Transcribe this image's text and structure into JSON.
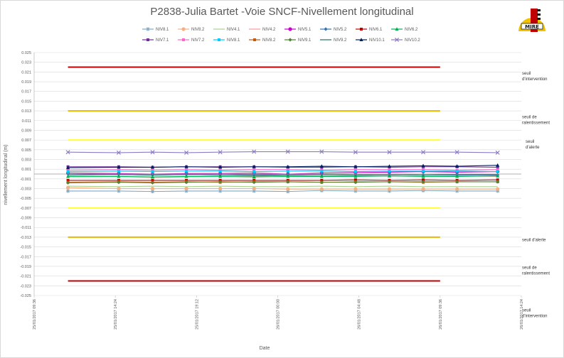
{
  "chart_data": {
    "type": "line",
    "title": "P2838-Julia Bartet -Voie SNCF-Nivellement longitudinal",
    "xlabel": "Date",
    "ylabel": "nivellement longitudinal (m)",
    "ylim": [
      -0.025,
      0.025
    ],
    "y_tick_step": 0.002,
    "x_ticks": [
      "25/01/2017 09:36",
      "25/01/2017 14:24",
      "25/01/2017 19:12",
      "26/01/2017 00:00",
      "26/01/2017 04:48",
      "26/01/2017 09:36",
      "26/01/2017 14:24"
    ],
    "x_range_hours": [
      0,
      28.8
    ],
    "x_point_hours": [
      2,
      5,
      7,
      9,
      11,
      13,
      15,
      17,
      19,
      21,
      23,
      25,
      27.4
    ],
    "grid": "horizontal",
    "legend_position": "top",
    "thresholds": [
      {
        "label": "seuil d'intervention",
        "value": 0.022,
        "color": "#c00000"
      },
      {
        "label": "seuil de ralentissement",
        "value": 0.013,
        "color": "#e6b800"
      },
      {
        "label": "seuil d'alerte",
        "value": 0.007,
        "color": "#ffff33"
      },
      {
        "label": "seuil d'alerte",
        "value": -0.007,
        "color": "#ffff33"
      },
      {
        "label": "seuil de ralentissement",
        "value": -0.013,
        "color": "#e6b800"
      },
      {
        "label": "seuil d'intervention",
        "value": -0.022,
        "color": "#c00000"
      }
    ],
    "threshold_x_hours": [
      0,
      24
    ],
    "series": [
      {
        "name": "NIV8.1",
        "color": "#7fa9c6",
        "marker": "star",
        "values": [
          -0.0035,
          -0.0035,
          -0.0036,
          -0.0035,
          -0.0035,
          -0.0035,
          -0.0036,
          -0.0034,
          -0.0035,
          -0.0035,
          -0.0034,
          -0.0035,
          -0.0035
        ]
      },
      {
        "name": "NIV8.2",
        "color": "#f4b183",
        "marker": "circle",
        "values": [
          -0.0028,
          -0.003,
          -0.003,
          -0.003,
          -0.003,
          -0.003,
          -0.0031,
          -0.0031,
          -0.0031,
          -0.0031,
          -0.0031,
          -0.0031,
          -0.0031
        ]
      },
      {
        "name": "NIV4.1",
        "color": "#a9d18e",
        "marker": "none",
        "values": [
          -0.0025,
          -0.0026,
          -0.0025,
          -0.0026,
          -0.0025,
          -0.0026,
          -0.0026,
          -0.0025,
          -0.0026,
          -0.0025,
          -0.0026,
          -0.0026,
          -0.0026
        ]
      },
      {
        "name": "NIV4.2",
        "color": "#ff9999",
        "marker": "none",
        "values": [
          -0.0006,
          -0.0005,
          -0.0007,
          -0.0006,
          -0.0005,
          -0.0005,
          -0.0003,
          -0.0004,
          -0.0003,
          -0.0004,
          -0.0005,
          -0.0004,
          -0.0005
        ]
      },
      {
        "name": "NIV5.1",
        "color": "#cc00cc",
        "marker": "circle",
        "values": [
          0.0002,
          0.0001,
          0.0,
          0.0001,
          0.0001,
          0.0002,
          0.0,
          0.0002,
          0.0003,
          0.0004,
          0.0005,
          0.0004,
          0.0005
        ]
      },
      {
        "name": "NIV5.2",
        "color": "#2e75b6",
        "marker": "diamond",
        "values": [
          0.0,
          -0.0001,
          -0.0002,
          -0.0001,
          -0.0002,
          -0.0001,
          -0.0002,
          -0.0001,
          -0.0002,
          -0.0001,
          -0.0002,
          -0.0002,
          -0.0002
        ]
      },
      {
        "name": "NIV6.1",
        "color": "#c00000",
        "marker": "square",
        "values": [
          -0.0013,
          -0.0013,
          -0.0013,
          -0.0013,
          -0.0013,
          -0.0013,
          -0.0013,
          -0.0013,
          -0.0012,
          -0.0013,
          -0.0012,
          -0.0013,
          -0.0012
        ]
      },
      {
        "name": "NIV6.2",
        "color": "#00b050",
        "marker": "triangle",
        "values": [
          -0.0005,
          -0.0005,
          -0.0006,
          -0.0005,
          -0.0005,
          -0.0006,
          -0.0005,
          -0.0005,
          -0.0005,
          -0.0004,
          -0.0005,
          -0.0005,
          -0.0004
        ]
      },
      {
        "name": "NIV7.1",
        "color": "#7030a0",
        "marker": "square",
        "values": [
          0.0015,
          0.0015,
          0.0014,
          0.0015,
          0.0015,
          0.0015,
          0.0014,
          0.0014,
          0.0015,
          0.0014,
          0.0015,
          0.0015,
          0.0014
        ]
      },
      {
        "name": "NIV7.2",
        "color": "#ff66cc",
        "marker": "square",
        "values": [
          0.0008,
          0.0009,
          0.0008,
          0.0009,
          0.0008,
          0.0009,
          0.0009,
          0.0008,
          0.0009,
          0.0009,
          0.0009,
          0.0008,
          0.0009
        ]
      },
      {
        "name": "NIV8.1",
        "color": "#00ccff",
        "marker": "square",
        "values": [
          0.0005,
          0.0006,
          0.0005,
          0.0006,
          0.0006,
          0.0005,
          0.0006,
          0.0006,
          0.0005,
          0.0006,
          0.0006,
          0.0006,
          0.0005
        ]
      },
      {
        "name": "NIV8.2",
        "color": "#c55a11",
        "marker": "square",
        "values": [
          -0.0017,
          -0.0016,
          -0.0017,
          -0.0016,
          -0.0017,
          -0.0016,
          -0.0016,
          -0.0017,
          -0.0016,
          -0.0016,
          -0.0017,
          -0.0016,
          -0.0016
        ]
      },
      {
        "name": "NIV9.1",
        "color": "#548235",
        "marker": "diamond",
        "values": [
          -0.0018,
          -0.0017,
          -0.0018,
          -0.0017,
          -0.0016,
          -0.0017,
          -0.0016,
          -0.0017,
          -0.0017,
          -0.0016,
          -0.0016,
          -0.0016,
          -0.0016
        ]
      },
      {
        "name": "NIV9.2",
        "color": "#1f6f5f",
        "marker": "none",
        "values": [
          -0.0002,
          -0.0001,
          -0.0002,
          -0.0001,
          -0.0002,
          -0.0003,
          -0.0002,
          -0.0001,
          -0.0002,
          -0.0001,
          -0.0002,
          -0.0001,
          -0.0001
        ]
      },
      {
        "name": "NIV10.1",
        "color": "#002060",
        "marker": "triangle",
        "values": [
          0.0013,
          0.0014,
          0.0014,
          0.0015,
          0.0014,
          0.0015,
          0.0015,
          0.0016,
          0.0015,
          0.0016,
          0.0017,
          0.0016,
          0.0018
        ]
      },
      {
        "name": "NIV10.2",
        "color": "#8e7cc3",
        "marker": "x",
        "values": [
          0.0045,
          0.0044,
          0.0045,
          0.0044,
          0.0045,
          0.0046,
          0.0046,
          0.0046,
          0.0045,
          0.0045,
          0.0045,
          0.0045,
          0.0044
        ]
      }
    ]
  }
}
